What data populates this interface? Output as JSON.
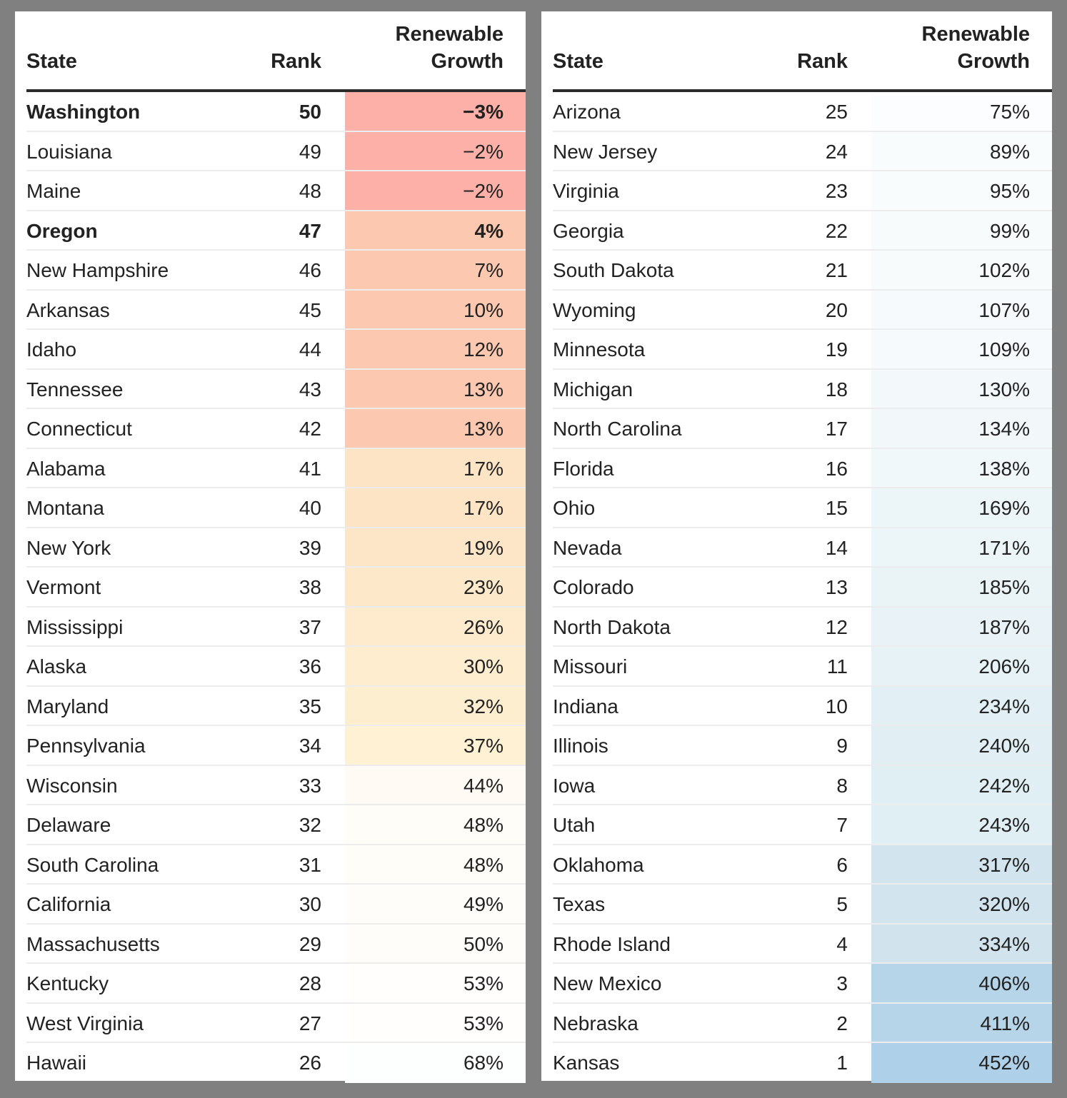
{
  "headers": {
    "state": "State",
    "rank": "Rank",
    "growth_line1": "Renewable",
    "growth_line2": "Growth"
  },
  "colors": {
    "background": "#808080",
    "negative": "#fdb0a8",
    "low": "#fdc8b0",
    "mid": "#fde3c4",
    "neutral": "#ffffff",
    "high": "#eef8fb",
    "top": "#aed0e8"
  },
  "left_table": [
    {
      "state": "Washington",
      "rank": "50",
      "growth": "−3%",
      "value": -3,
      "bold": true
    },
    {
      "state": "Louisiana",
      "rank": "49",
      "growth": "−2%",
      "value": -2,
      "bold": false
    },
    {
      "state": "Maine",
      "rank": "48",
      "growth": "−2%",
      "value": -2,
      "bold": false
    },
    {
      "state": "Oregon",
      "rank": "47",
      "growth": "4%",
      "value": 4,
      "bold": true
    },
    {
      "state": "New Hampshire",
      "rank": "46",
      "growth": "7%",
      "value": 7,
      "bold": false
    },
    {
      "state": "Arkansas",
      "rank": "45",
      "growth": "10%",
      "value": 10,
      "bold": false
    },
    {
      "state": "Idaho",
      "rank": "44",
      "growth": "12%",
      "value": 12,
      "bold": false
    },
    {
      "state": "Tennessee",
      "rank": "43",
      "growth": "13%",
      "value": 13,
      "bold": false
    },
    {
      "state": "Connecticut",
      "rank": "42",
      "growth": "13%",
      "value": 13,
      "bold": false
    },
    {
      "state": "Alabama",
      "rank": "41",
      "growth": "17%",
      "value": 17,
      "bold": false
    },
    {
      "state": "Montana",
      "rank": "40",
      "growth": "17%",
      "value": 17,
      "bold": false
    },
    {
      "state": "New York",
      "rank": "39",
      "growth": "19%",
      "value": 19,
      "bold": false
    },
    {
      "state": "Vermont",
      "rank": "38",
      "growth": "23%",
      "value": 23,
      "bold": false
    },
    {
      "state": "Mississippi",
      "rank": "37",
      "growth": "26%",
      "value": 26,
      "bold": false
    },
    {
      "state": "Alaska",
      "rank": "36",
      "growth": "30%",
      "value": 30,
      "bold": false
    },
    {
      "state": "Maryland",
      "rank": "35",
      "growth": "32%",
      "value": 32,
      "bold": false
    },
    {
      "state": "Pennsylvania",
      "rank": "34",
      "growth": "37%",
      "value": 37,
      "bold": false
    },
    {
      "state": "Wisconsin",
      "rank": "33",
      "growth": "44%",
      "value": 44,
      "bold": false
    },
    {
      "state": "Delaware",
      "rank": "32",
      "growth": "48%",
      "value": 48,
      "bold": false
    },
    {
      "state": "South Carolina",
      "rank": "31",
      "growth": "48%",
      "value": 48,
      "bold": false
    },
    {
      "state": "California",
      "rank": "30",
      "growth": "49%",
      "value": 49,
      "bold": false
    },
    {
      "state": "Massachusetts",
      "rank": "29",
      "growth": "50%",
      "value": 50,
      "bold": false
    },
    {
      "state": "Kentucky",
      "rank": "28",
      "growth": "53%",
      "value": 53,
      "bold": false
    },
    {
      "state": "West Virginia",
      "rank": "27",
      "growth": "53%",
      "value": 53,
      "bold": false
    },
    {
      "state": "Hawaii",
      "rank": "26",
      "growth": "68%",
      "value": 68,
      "bold": false
    }
  ],
  "right_table": [
    {
      "state": "Arizona",
      "rank": "25",
      "growth": "75%",
      "value": 75,
      "bold": false
    },
    {
      "state": "New Jersey",
      "rank": "24",
      "growth": "89%",
      "value": 89,
      "bold": false
    },
    {
      "state": "Virginia",
      "rank": "23",
      "growth": "95%",
      "value": 95,
      "bold": false
    },
    {
      "state": "Georgia",
      "rank": "22",
      "growth": "99%",
      "value": 99,
      "bold": false
    },
    {
      "state": "South Dakota",
      "rank": "21",
      "growth": "102%",
      "value": 102,
      "bold": false
    },
    {
      "state": "Wyoming",
      "rank": "20",
      "growth": "107%",
      "value": 107,
      "bold": false
    },
    {
      "state": "Minnesota",
      "rank": "19",
      "growth": "109%",
      "value": 109,
      "bold": false
    },
    {
      "state": "Michigan",
      "rank": "18",
      "growth": "130%",
      "value": 130,
      "bold": false
    },
    {
      "state": "North Carolina",
      "rank": "17",
      "growth": "134%",
      "value": 134,
      "bold": false
    },
    {
      "state": "Florida",
      "rank": "16",
      "growth": "138%",
      "value": 138,
      "bold": false
    },
    {
      "state": "Ohio",
      "rank": "15",
      "growth": "169%",
      "value": 169,
      "bold": false
    },
    {
      "state": "Nevada",
      "rank": "14",
      "growth": "171%",
      "value": 171,
      "bold": false
    },
    {
      "state": "Colorado",
      "rank": "13",
      "growth": "185%",
      "value": 185,
      "bold": false
    },
    {
      "state": "North Dakota",
      "rank": "12",
      "growth": "187%",
      "value": 187,
      "bold": false
    },
    {
      "state": "Missouri",
      "rank": "11",
      "growth": "206%",
      "value": 206,
      "bold": false
    },
    {
      "state": "Indiana",
      "rank": "10",
      "growth": "234%",
      "value": 234,
      "bold": false
    },
    {
      "state": "Illinois",
      "rank": "9",
      "growth": "240%",
      "value": 240,
      "bold": false
    },
    {
      "state": "Iowa",
      "rank": "8",
      "growth": "242%",
      "value": 242,
      "bold": false
    },
    {
      "state": "Utah",
      "rank": "7",
      "growth": "243%",
      "value": 243,
      "bold": false
    },
    {
      "state": "Oklahoma",
      "rank": "6",
      "growth": "317%",
      "value": 317,
      "bold": false
    },
    {
      "state": "Texas",
      "rank": "5",
      "growth": "320%",
      "value": 320,
      "bold": false
    },
    {
      "state": "Rhode Island",
      "rank": "4",
      "growth": "334%",
      "value": 334,
      "bold": false
    },
    {
      "state": "New Mexico",
      "rank": "3",
      "growth": "406%",
      "value": 406,
      "bold": false
    },
    {
      "state": "Nebraska",
      "rank": "2",
      "growth": "411%",
      "value": 411,
      "bold": false
    },
    {
      "state": "Kansas",
      "rank": "1",
      "growth": "452%",
      "value": 452,
      "bold": false
    }
  ]
}
